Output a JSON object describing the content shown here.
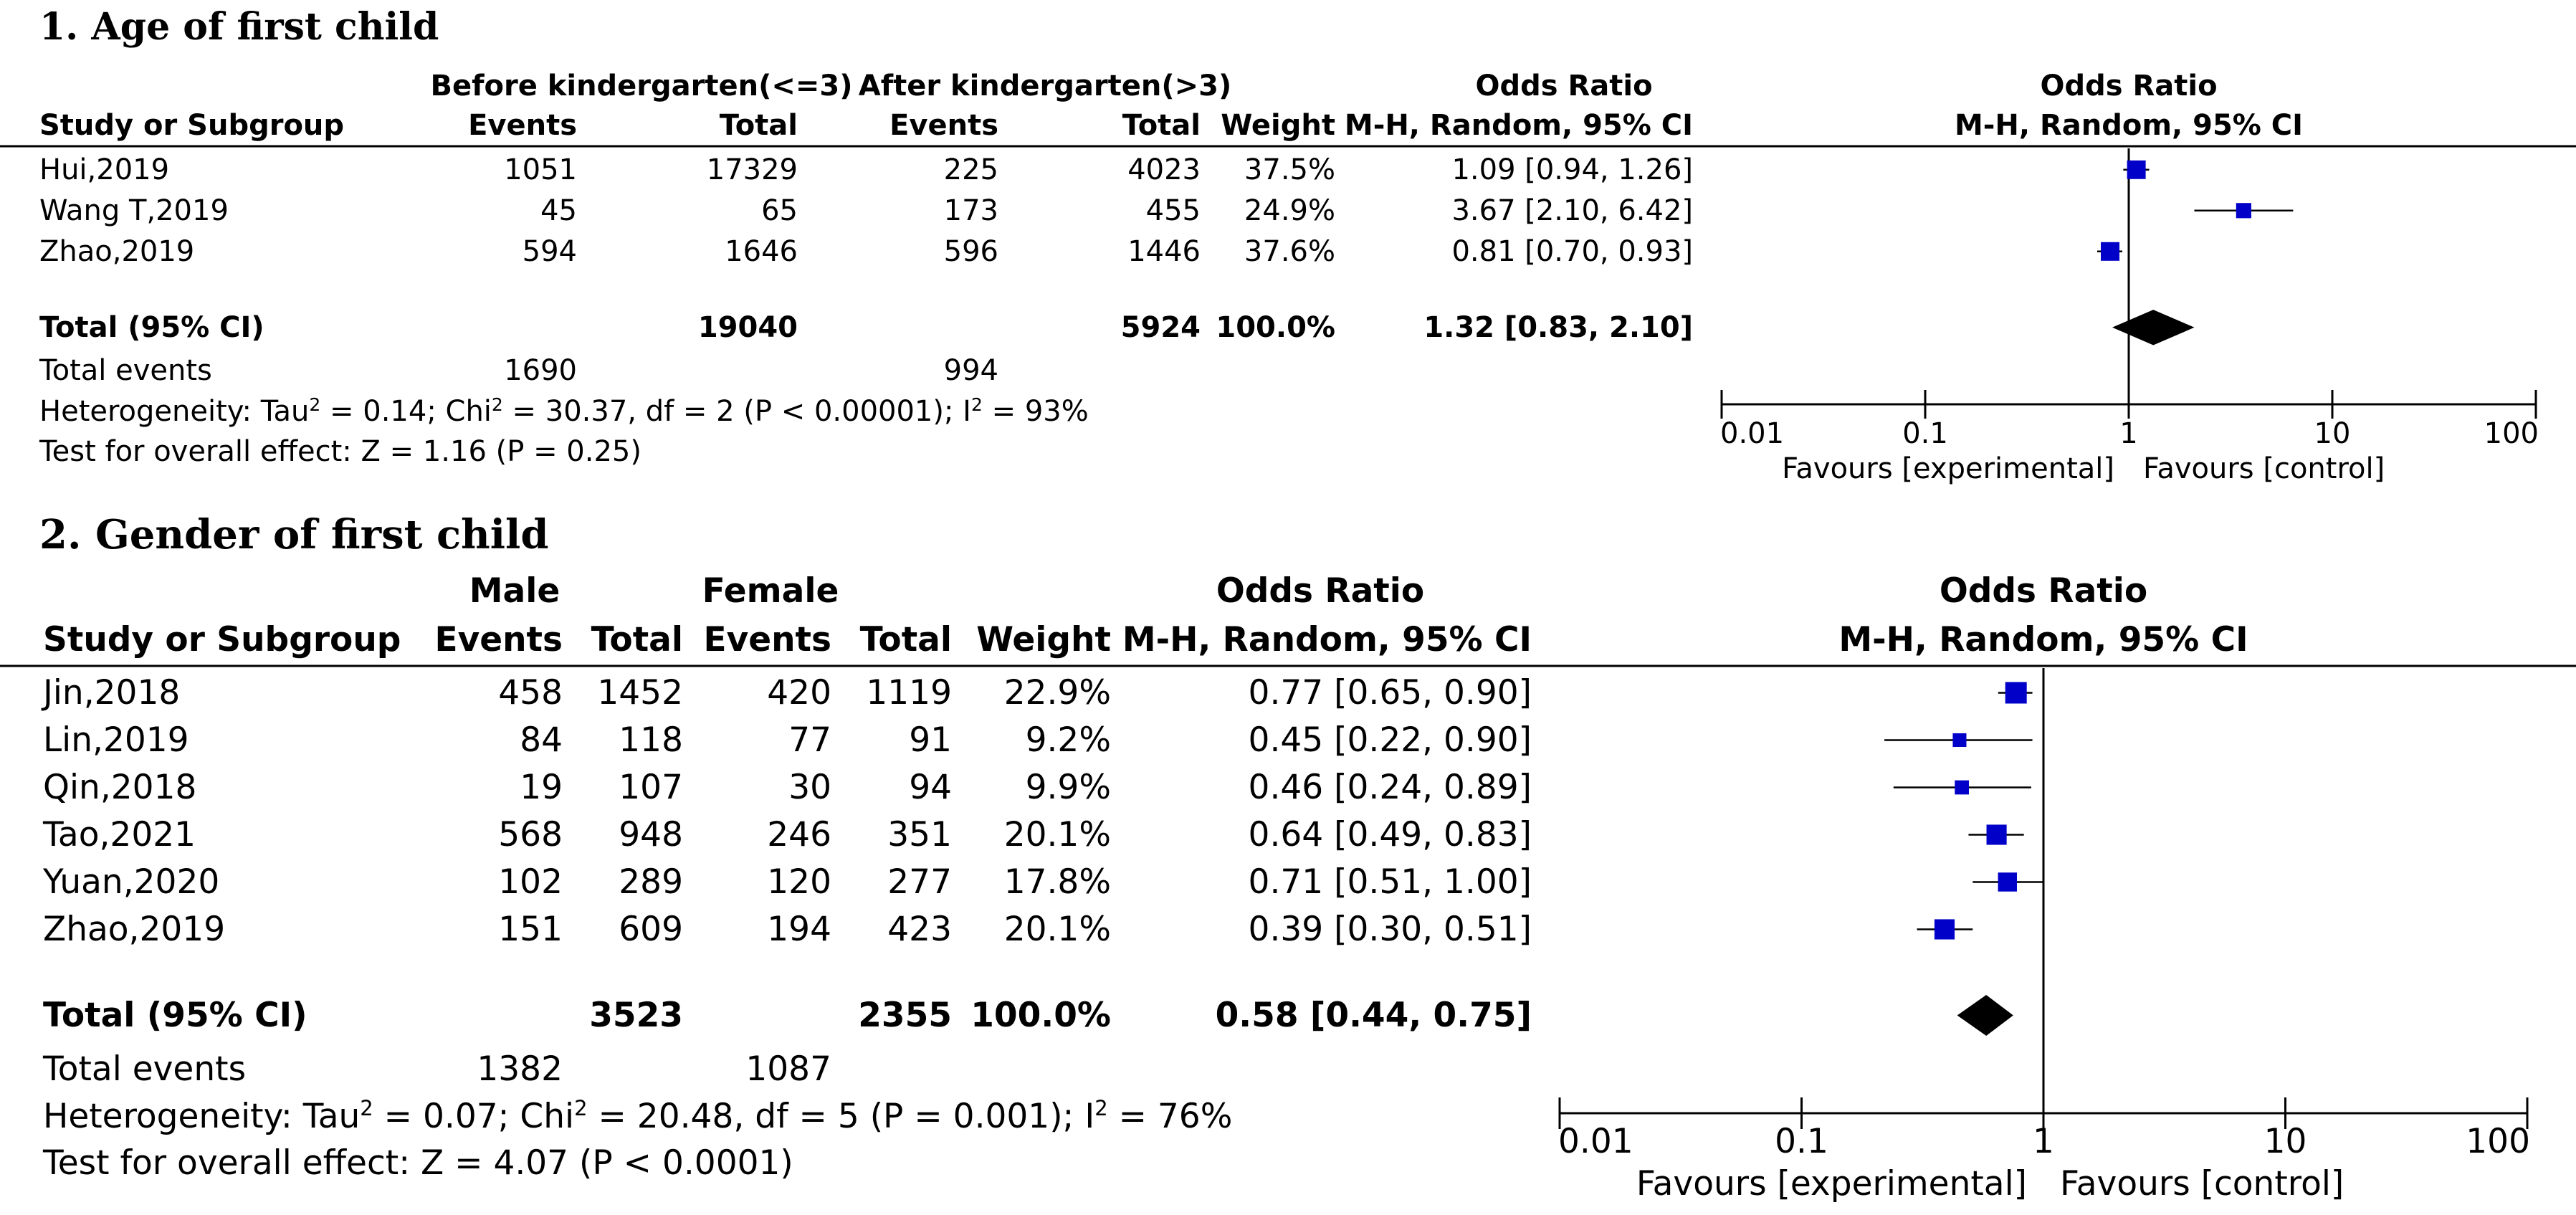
{
  "colors": {
    "marker": "#0000c8",
    "diamond": "#000000",
    "line": "#000000"
  },
  "chart_data": [
    {
      "type": "forest",
      "title": "1. Age of first child",
      "group_labels": [
        "Before kindergarten(<=3)",
        "After kindergarten(>3)"
      ],
      "columns": {
        "study": "Study or Subgroup",
        "events": "Events",
        "total": "Total",
        "weight": "Weight",
        "or_top": "Odds Ratio",
        "or_method": "M-H, Random, 95% CI"
      },
      "plot_header": {
        "top": "Odds Ratio",
        "method": "M-H, Random, 95% CI"
      },
      "studies": [
        {
          "name": "Hui,2019",
          "e1": "1051",
          "t1": "17329",
          "e2": "225",
          "t2": "4023",
          "weight": "37.5%",
          "ci_text": "1.09 [0.94, 1.26]",
          "or": 1.09,
          "lo": 0.94,
          "hi": 1.26,
          "w": 37.5
        },
        {
          "name": "Wang T,2019",
          "e1": "45",
          "t1": "65",
          "e2": "173",
          "t2": "455",
          "weight": "24.9%",
          "ci_text": "3.67 [2.10, 6.42]",
          "or": 3.67,
          "lo": 2.1,
          "hi": 6.42,
          "w": 24.9
        },
        {
          "name": "Zhao,2019",
          "e1": "594",
          "t1": "1646",
          "e2": "596",
          "t2": "1446",
          "weight": "37.6%",
          "ci_text": "0.81 [0.70, 0.93]",
          "or": 0.81,
          "lo": 0.7,
          "hi": 0.93,
          "w": 37.6
        }
      ],
      "total": {
        "label": "Total (95% CI)",
        "t1": "19040",
        "t2": "5924",
        "weight": "100.0%",
        "ci_text": "1.32 [0.83, 2.10]",
        "or": 1.32,
        "lo": 0.83,
        "hi": 2.1
      },
      "total_events": {
        "label": "Total events",
        "e1": "1690",
        "e2": "994"
      },
      "heterogeneity": {
        "prefix": "Heterogeneity: Tau",
        "mid1": " = 0.14; Chi",
        "mid2": " = 30.37, df = 2 (P < 0.00001); I",
        "suffix": " = 93%",
        "sup": "2"
      },
      "overall": "Test for overall effect: Z = 1.16 (P = 0.25)",
      "axis": {
        "scale": "log",
        "range": [
          0.01,
          100
        ],
        "ticks": [
          0.01,
          0.1,
          1,
          10,
          100
        ],
        "tick_labels": [
          "0.01",
          "0.1",
          "1",
          "10",
          "100"
        ],
        "favours_left": "Favours [experimental]",
        "favours_right": "Favours [control]"
      }
    },
    {
      "type": "forest",
      "title": "2. Gender of first child",
      "group_labels": [
        "Male",
        "Female"
      ],
      "columns": {
        "study": "Study or Subgroup",
        "events": "Events",
        "total": "Total",
        "weight": "Weight",
        "or_top": "Odds Ratio",
        "or_method": "M-H, Random, 95% CI"
      },
      "plot_header": {
        "top": "Odds Ratio",
        "method": "M-H, Random, 95% CI"
      },
      "studies": [
        {
          "name": "Jin,2018",
          "e1": "458",
          "t1": "1452",
          "e2": "420",
          "t2": "1119",
          "weight": "22.9%",
          "ci_text": "0.77 [0.65, 0.90]",
          "or": 0.77,
          "lo": 0.65,
          "hi": 0.9,
          "w": 22.9
        },
        {
          "name": "Lin,2019",
          "e1": "84",
          "t1": "118",
          "e2": "77",
          "t2": "91",
          "weight": "9.2%",
          "ci_text": "0.45 [0.22, 0.90]",
          "or": 0.45,
          "lo": 0.22,
          "hi": 0.9,
          "w": 9.2
        },
        {
          "name": "Qin,2018",
          "e1": "19",
          "t1": "107",
          "e2": "30",
          "t2": "94",
          "weight": "9.9%",
          "ci_text": "0.46 [0.24, 0.89]",
          "or": 0.46,
          "lo": 0.24,
          "hi": 0.89,
          "w": 9.9
        },
        {
          "name": "Tao,2021",
          "e1": "568",
          "t1": "948",
          "e2": "246",
          "t2": "351",
          "weight": "20.1%",
          "ci_text": "0.64 [0.49, 0.83]",
          "or": 0.64,
          "lo": 0.49,
          "hi": 0.83,
          "w": 20.1
        },
        {
          "name": "Yuan,2020",
          "e1": "102",
          "t1": "289",
          "e2": "120",
          "t2": "277",
          "weight": "17.8%",
          "ci_text": "0.71 [0.51, 1.00]",
          "or": 0.71,
          "lo": 0.51,
          "hi": 1.0,
          "w": 17.8
        },
        {
          "name": "Zhao,2019",
          "e1": "151",
          "t1": "609",
          "e2": "194",
          "t2": "423",
          "weight": "20.1%",
          "ci_text": "0.39 [0.30, 0.51]",
          "or": 0.39,
          "lo": 0.3,
          "hi": 0.51,
          "w": 20.1
        }
      ],
      "total": {
        "label": "Total (95% CI)",
        "t1": "3523",
        "t2": "2355",
        "weight": "100.0%",
        "ci_text": "0.58 [0.44, 0.75]",
        "or": 0.58,
        "lo": 0.44,
        "hi": 0.75
      },
      "total_events": {
        "label": "Total events",
        "e1": "1382",
        "e2": "1087"
      },
      "heterogeneity": {
        "prefix": "Heterogeneity: Tau",
        "mid1": " = 0.07; Chi",
        "mid2": " = 20.48, df = 5 (P = 0.001); I",
        "suffix": " = 76%",
        "sup": "2"
      },
      "overall": "Test for overall effect: Z = 4.07 (P < 0.0001)",
      "axis": {
        "scale": "log",
        "range": [
          0.01,
          100
        ],
        "ticks": [
          0.01,
          0.1,
          1,
          10,
          100
        ],
        "tick_labels": [
          "0.01",
          "0.1",
          "1",
          "10",
          "100"
        ],
        "favours_left": "Favours [experimental]",
        "favours_right": "Favours [control]"
      }
    }
  ]
}
